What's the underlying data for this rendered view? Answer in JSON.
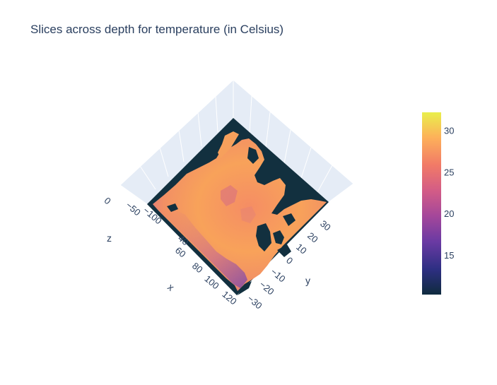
{
  "chart_data": {
    "type": "heatmap",
    "title": "Slices across depth for temperature (in Celsius)",
    "axes": {
      "x": {
        "label": "x",
        "ticks": [
          "40",
          "60",
          "80",
          "100",
          "120"
        ]
      },
      "y": {
        "label": "y",
        "ticks": [
          "30",
          "20",
          "10",
          "0",
          "−10",
          "−20",
          "−30"
        ]
      },
      "z": {
        "label": "z",
        "ticks": [
          "0",
          "−50",
          "−100"
        ]
      }
    },
    "colorbar": {
      "ticks": [
        "15",
        "20",
        "25",
        "30"
      ],
      "tick_values": [
        15,
        20,
        25,
        30
      ],
      "range": [
        10.3,
        32.2
      ],
      "colorscale": [
        "#0d0887",
        "#46039f",
        "#7201a8",
        "#9c179e",
        "#bd3786",
        "#d8576b",
        "#ed7953",
        "#fb9f3a",
        "#fdca26",
        "#f0f921"
      ],
      "plotly_colorscale": [
        "#1c3341",
        "#2e2f83",
        "#7a3e9b",
        "#c75b88",
        "#f0756b",
        "#fea35b",
        "#fbc957",
        "#ecf04a"
      ]
    },
    "surface_note": "",
    "land_color": "#12303f"
  }
}
